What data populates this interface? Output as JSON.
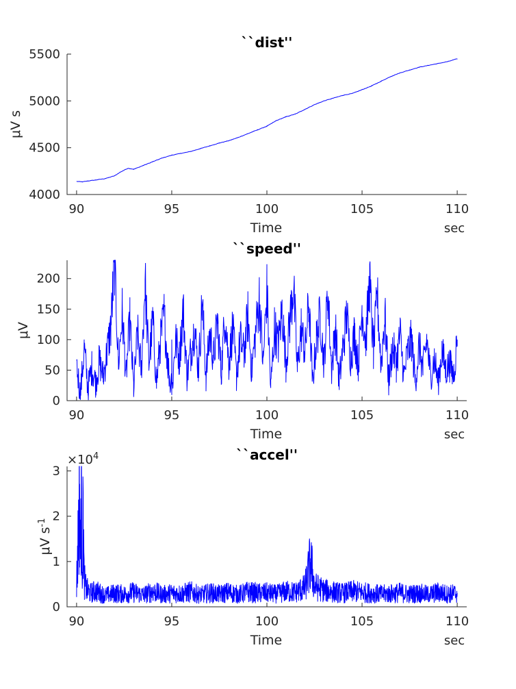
{
  "chart_data": [
    {
      "type": "line",
      "title": "``dist''",
      "xlabel": "Time",
      "x_unit": "sec",
      "ylabel_html": "μV s",
      "xlim": [
        89.5,
        110.5
      ],
      "ylim": [
        4000,
        5500
      ],
      "xticks": [
        90,
        95,
        100,
        105,
        110
      ],
      "yticks": [
        4000,
        4500,
        5000,
        5500
      ],
      "ytick_labels": [
        "4000",
        "4500",
        "5000",
        "5500"
      ],
      "exponent_label": "",
      "color": "#0000ff",
      "series": [
        {
          "x": [
            90.0,
            90.3,
            90.6,
            91.0,
            91.5,
            92.0,
            92.3,
            92.7,
            93.0,
            93.5,
            94.0,
            94.5,
            95.0,
            95.5,
            96.0,
            96.5,
            97.0,
            97.5,
            98.0,
            98.5,
            99.0,
            99.5,
            100.0,
            100.5,
            101.0,
            101.5,
            102.0,
            102.5,
            103.0,
            103.5,
            104.0,
            104.5,
            105.0,
            105.5,
            106.0,
            106.5,
            107.0,
            107.5,
            108.0,
            108.5,
            109.0,
            109.5,
            110.0
          ],
          "y": [
            4140,
            4135,
            4145,
            4155,
            4170,
            4200,
            4240,
            4280,
            4270,
            4310,
            4350,
            4390,
            4420,
            4440,
            4460,
            4490,
            4520,
            4550,
            4575,
            4610,
            4650,
            4690,
            4730,
            4790,
            4830,
            4860,
            4910,
            4960,
            5000,
            5030,
            5060,
            5080,
            5120,
            5160,
            5210,
            5260,
            5300,
            5330,
            5360,
            5380,
            5400,
            5420,
            5450
          ]
        }
      ]
    },
    {
      "type": "line",
      "title": "``speed''",
      "xlabel": "Time",
      "x_unit": "sec",
      "ylabel_html": "μV",
      "xlim": [
        89.5,
        110.5
      ],
      "ylim": [
        0,
        230
      ],
      "xticks": [
        90,
        95,
        100,
        105,
        110
      ],
      "yticks": [
        0,
        50,
        100,
        150,
        200
      ],
      "ytick_labels": [
        "0",
        "50",
        "100",
        "150",
        "200"
      ],
      "exponent_label": "",
      "color": "#0000ff",
      "series": [
        {
          "x": [
            90.0,
            90.2,
            90.4,
            90.6,
            90.8,
            91.0,
            91.2,
            91.4,
            91.6,
            91.8,
            92.0,
            92.2,
            92.4,
            92.6,
            92.8,
            93.0,
            93.2,
            93.4,
            93.6,
            93.8,
            94.0,
            94.2,
            94.4,
            94.6,
            94.8,
            95.0,
            95.2,
            95.4,
            95.6,
            95.8,
            96.0,
            96.2,
            96.4,
            96.6,
            96.8,
            97.0,
            97.2,
            97.4,
            97.6,
            97.8,
            98.0,
            98.2,
            98.4,
            98.6,
            98.8,
            99.0,
            99.2,
            99.4,
            99.6,
            99.8,
            100.0,
            100.2,
            100.4,
            100.6,
            100.8,
            101.0,
            101.2,
            101.4,
            101.6,
            101.8,
            102.0,
            102.2,
            102.4,
            102.6,
            102.8,
            103.0,
            103.2,
            103.4,
            103.6,
            103.8,
            104.0,
            104.2,
            104.4,
            104.6,
            104.8,
            105.0,
            105.2,
            105.4,
            105.6,
            105.8,
            106.0,
            106.2,
            106.4,
            106.6,
            106.8,
            107.0,
            107.2,
            107.4,
            107.6,
            107.8,
            108.0,
            108.2,
            108.4,
            108.6,
            108.8,
            109.0,
            109.2,
            109.4,
            109.6,
            109.8,
            110.0
          ],
          "y": [
            60,
            10,
            85,
            20,
            55,
            30,
            65,
            40,
            80,
            120,
            230,
            60,
            145,
            40,
            130,
            20,
            110,
            50,
            195,
            60,
            130,
            30,
            95,
            140,
            60,
            10,
            100,
            70,
            150,
            40,
            80,
            120,
            50,
            160,
            40,
            110,
            70,
            130,
            45,
            145,
            60,
            120,
            40,
            100,
            75,
            140,
            50,
            110,
            170,
            60,
            180,
            20,
            120,
            90,
            150,
            60,
            130,
            190,
            50,
            120,
            80,
            160,
            30,
            100,
            140,
            60,
            180,
            50,
            120,
            30,
            90,
            140,
            70,
            110,
            60,
            150,
            100,
            195,
            80,
            170,
            60,
            140,
            30,
            90,
            60,
            110,
            40,
            80,
            100,
            30,
            90,
            50,
            100,
            40,
            70,
            30,
            80,
            50,
            60,
            40,
            100
          ]
        }
      ]
    },
    {
      "type": "line",
      "title": "``accel''",
      "xlabel": "Time",
      "x_unit": "sec",
      "ylabel_html": "μV s<tspan baseline-shift=\"super\" font-size=\"13\">-1</tspan>",
      "xlim": [
        89.5,
        110.5
      ],
      "ylim": [
        0,
        31000
      ],
      "xticks": [
        90,
        95,
        100,
        105,
        110
      ],
      "yticks": [
        0,
        10000,
        20000,
        30000
      ],
      "ytick_labels": [
        "0",
        "1",
        "2",
        "3"
      ],
      "exponent_label": "×10<tspan baseline-shift=\"super\" font-size=\"13\">4</tspan>",
      "color": "#0000ff",
      "series": [
        {
          "x": [
            90.0,
            90.1,
            90.15,
            90.2,
            90.25,
            90.3,
            90.35,
            90.4,
            90.5,
            90.7,
            91.0,
            91.5,
            92.0,
            92.5,
            93.0,
            93.5,
            94.0,
            94.5,
            95.0,
            95.5,
            96.0,
            96.5,
            97.0,
            97.5,
            98.0,
            98.5,
            99.0,
            99.5,
            100.0,
            100.5,
            101.0,
            101.5,
            102.0,
            102.3,
            102.5,
            103.0,
            103.5,
            104.0,
            104.5,
            105.0,
            105.5,
            106.0,
            106.5,
            107.0,
            107.5,
            108.0,
            108.5,
            109.0,
            109.5,
            110.0
          ],
          "y": [
            5000,
            17000,
            28000,
            12000,
            31000,
            9000,
            20000,
            6000,
            4000,
            3000,
            3500,
            2500,
            3000,
            2800,
            3200,
            2600,
            3400,
            2700,
            3000,
            2900,
            3300,
            2600,
            3100,
            2800,
            3200,
            2700,
            3300,
            3000,
            3100,
            2800,
            3400,
            3200,
            4200,
            10000,
            4500,
            3600,
            3300,
            3000,
            3400,
            3200,
            3000,
            2800,
            2900,
            3100,
            2800,
            3000,
            2700,
            3200,
            2800,
            3000
          ]
        }
      ]
    }
  ]
}
